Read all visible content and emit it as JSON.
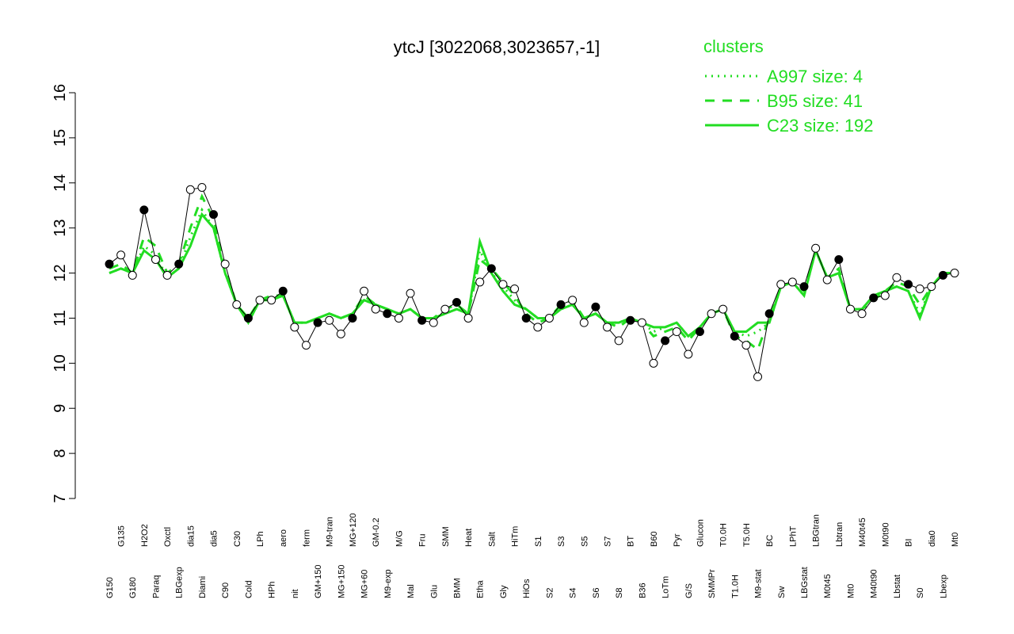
{
  "chart_data": {
    "type": "line",
    "title": "ytcJ [3022068,3023657,-1]",
    "legend_title": "clusters",
    "ylim": [
      7,
      16
    ],
    "yticks": [
      7,
      8,
      9,
      10,
      11,
      12,
      13,
      14,
      15,
      16
    ],
    "categories": [
      "G150",
      "G135",
      "G180",
      "H2O2",
      "Paraq",
      "Oxctl",
      "LBGexp",
      "dia15",
      "Diami",
      "dia5",
      "C90",
      "C30",
      "Cold",
      "LPh",
      "HPh",
      "aero",
      "nit",
      "ferm",
      "GM+150",
      "M9-tran",
      "MG+150",
      "MG+120",
      "MG+60",
      "GM-0.2",
      "M9-exp",
      "M/G",
      "Mal",
      "Fru",
      "Glu",
      "SMM",
      "BMM",
      "Heat",
      "Etha",
      "Salt",
      "Gly",
      "HiTm",
      "HiOs",
      "S1",
      "S2",
      "S3",
      "S4",
      "S5",
      "S6",
      "S7",
      "S8",
      "BT",
      "B36",
      "B60",
      "LoTm",
      "Pyr",
      "G/S",
      "Glucon",
      "SMMPr",
      "T0.0H",
      "T1.0H",
      "T5.0H",
      "M9-stat",
      "BC",
      "Sw",
      "LPhT",
      "LBGstat",
      "LBGtran",
      "M0t45",
      "Lbtran",
      "Mt0",
      "M40t45",
      "M40t90",
      "M0t90",
      "Lbstat",
      "BI",
      "S0",
      "dia0",
      "Lbexp",
      "Mt0"
    ],
    "values": [
      12.2,
      12.4,
      11.95,
      13.4,
      12.3,
      11.95,
      12.2,
      13.85,
      13.9,
      13.3,
      12.2,
      11.3,
      11.0,
      11.4,
      11.4,
      11.6,
      10.8,
      10.4,
      10.9,
      10.95,
      10.65,
      11.0,
      11.6,
      11.2,
      11.1,
      11.0,
      11.55,
      10.95,
      10.9,
      11.2,
      11.35,
      11.0,
      11.8,
      12.1,
      11.75,
      11.65,
      11.0,
      10.8,
      11.0,
      11.3,
      11.4,
      10.9,
      11.25,
      10.8,
      10.5,
      10.95,
      10.9,
      10.0,
      10.5,
      10.7,
      10.2,
      10.7,
      11.1,
      11.2,
      10.6,
      10.4,
      9.7,
      11.1,
      11.75,
      11.8,
      11.7,
      12.55,
      11.85,
      12.3,
      11.2,
      11.1,
      11.45,
      11.5,
      11.9,
      11.75,
      11.65,
      11.7,
      11.95,
      12.0
    ],
    "color": "#000000",
    "series": [
      {
        "name": "A997 size: 4",
        "color": "#22dd22",
        "dash": "dotted",
        "values": [
          12.0,
          12.1,
          12.0,
          12.6,
          12.4,
          11.9,
          12.1,
          12.8,
          13.4,
          13.0,
          12.0,
          11.3,
          10.9,
          11.4,
          11.4,
          11.5,
          10.9,
          10.9,
          11.0,
          11.1,
          11.0,
          11.1,
          11.4,
          11.3,
          11.2,
          11.1,
          11.2,
          11.0,
          11.0,
          11.1,
          11.2,
          11.1,
          12.5,
          12.0,
          11.7,
          11.4,
          11.2,
          11.0,
          11.0,
          11.2,
          11.3,
          11.0,
          11.1,
          10.9,
          10.9,
          11.0,
          10.9,
          10.7,
          10.8,
          10.9,
          10.6,
          10.8,
          11.1,
          11.2,
          10.7,
          10.6,
          10.7,
          10.9,
          11.7,
          11.8,
          11.5,
          12.5,
          11.9,
          12.0,
          11.2,
          11.2,
          11.5,
          11.6,
          11.7,
          11.6,
          11.1,
          11.7,
          12.0,
          12.0
        ]
      },
      {
        "name": "B95 size: 41",
        "color": "#22dd22",
        "dash": "dashed",
        "values": [
          12.1,
          12.2,
          12.0,
          12.8,
          12.6,
          12.0,
          12.2,
          13.0,
          13.7,
          13.2,
          12.1,
          11.3,
          11.0,
          11.4,
          11.5,
          11.5,
          10.9,
          10.9,
          11.0,
          11.1,
          11.0,
          11.1,
          11.5,
          11.3,
          11.2,
          11.1,
          11.2,
          11.0,
          11.0,
          11.2,
          11.3,
          11.1,
          12.3,
          12.1,
          11.8,
          11.5,
          11.1,
          10.9,
          11.0,
          11.3,
          11.4,
          11.0,
          11.1,
          10.9,
          10.8,
          11.0,
          10.9,
          10.6,
          10.7,
          10.8,
          10.5,
          10.8,
          11.1,
          11.2,
          10.6,
          10.5,
          10.3,
          11.0,
          11.7,
          11.8,
          11.6,
          12.5,
          11.9,
          12.1,
          11.2,
          11.2,
          11.4,
          11.6,
          11.8,
          11.7,
          11.3,
          11.7,
          12.0,
          12.0
        ]
      },
      {
        "name": "C23 size: 192",
        "color": "#22dd22",
        "dash": "solid",
        "values": [
          12.0,
          12.1,
          12.0,
          12.5,
          12.3,
          11.9,
          12.1,
          12.6,
          13.3,
          13.0,
          12.0,
          11.3,
          10.9,
          11.4,
          11.4,
          11.5,
          10.9,
          10.9,
          11.0,
          11.1,
          11.0,
          11.1,
          11.4,
          11.3,
          11.2,
          11.1,
          11.2,
          11.0,
          11.0,
          11.1,
          11.2,
          11.1,
          12.7,
          12.0,
          11.6,
          11.3,
          11.2,
          11.0,
          11.0,
          11.2,
          11.3,
          11.0,
          11.1,
          10.9,
          10.9,
          11.0,
          10.9,
          10.8,
          10.8,
          10.9,
          10.6,
          10.8,
          11.1,
          11.2,
          10.7,
          10.7,
          10.9,
          10.9,
          11.7,
          11.8,
          11.5,
          12.5,
          11.9,
          12.0,
          11.2,
          11.2,
          11.5,
          11.6,
          11.7,
          11.6,
          11.0,
          11.7,
          12.0,
          12.0
        ]
      }
    ]
  }
}
